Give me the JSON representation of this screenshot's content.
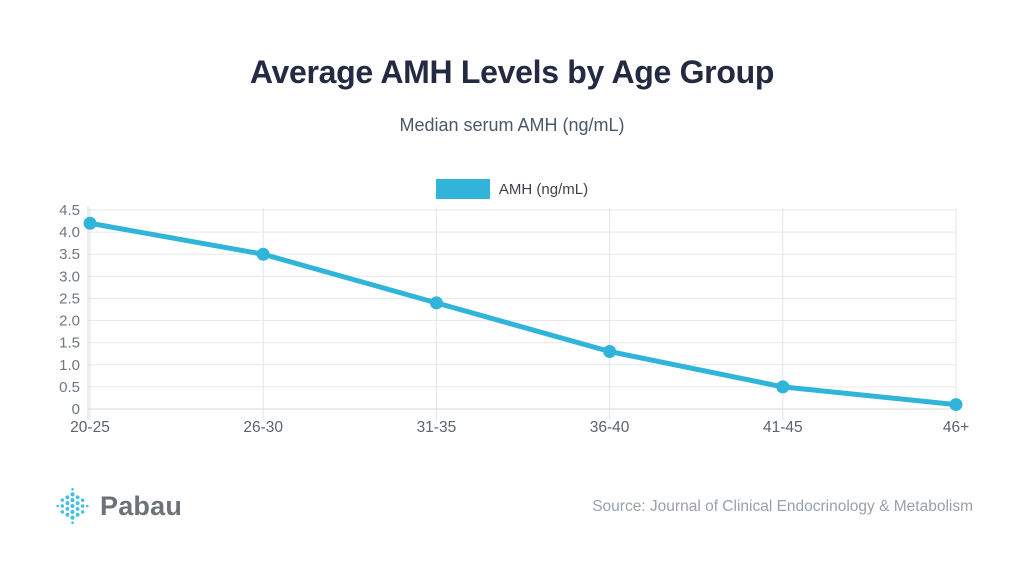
{
  "page": {
    "background": "#ffffff",
    "accent_color": "#30b4da"
  },
  "header": {
    "title": "Average AMH Levels by Age Group",
    "subtitle": "Median serum AMH (ng/mL)"
  },
  "legend": {
    "label": "AMH (ng/mL)",
    "swatch_color": "#30b4da"
  },
  "chart_data": {
    "type": "line",
    "title": "Average AMH Levels by Age Group",
    "subtitle": "Median serum AMH (ng/mL)",
    "categories": [
      "20-25",
      "26-30",
      "31-35",
      "36-40",
      "41-45",
      "46+"
    ],
    "series": [
      {
        "name": "AMH (ng/mL)",
        "values": [
          4.2,
          3.5,
          2.4,
          1.3,
          0.5,
          0.1
        ],
        "color": "#30b4da"
      }
    ],
    "xlabel": "",
    "ylabel": "",
    "ylim": [
      0,
      4.5
    ],
    "y_ticks": [
      4.5,
      4.0,
      3.5,
      3.0,
      2.5,
      2.0,
      1.5,
      1.0,
      0.5,
      0
    ],
    "y_tick_labels": [
      "4.5",
      "4.0",
      "3.5",
      "3.0",
      "2.5",
      "2.0",
      "1.5",
      "1.0",
      "0.5",
      "0"
    ],
    "grid": true,
    "legend_position": "top",
    "marker": "circle"
  },
  "footer": {
    "brand": "Pabau",
    "source": "Source: Journal of Clinical Endocrinology & Metabolism"
  },
  "colors": {
    "title": "#232a42",
    "subtitle": "#4c5866",
    "grid_line": "#e7e9ec",
    "grid_line_vertical": "#e2e5e8",
    "axis_line": "#d5d9dd",
    "y_tick_text": "#6e7681",
    "x_tick_text": "#5c636d",
    "logo_dot": "#44c0e4"
  }
}
